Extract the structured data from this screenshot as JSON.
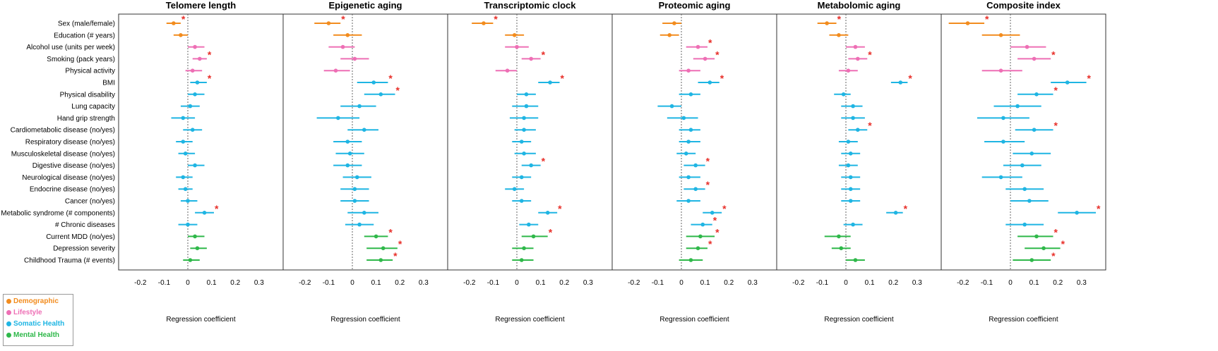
{
  "chart_data": {
    "type": "forest",
    "xlabel": "Regression coefficient",
    "xlim": [
      -0.25,
      0.36
    ],
    "xticks": [
      -0.2,
      -0.1,
      0.0,
      0.1,
      0.2,
      0.3
    ],
    "xtick_labels": [
      "-0.2",
      "-0.1",
      "0",
      "0.1",
      "0.2",
      "0.3"
    ],
    "reference_line": 0,
    "rows": [
      {
        "label": "Sex (male/female)",
        "group": "Demographic"
      },
      {
        "label": "Education (# years)",
        "group": "Demographic"
      },
      {
        "label": "Alcohol use (units per week)",
        "group": "Lifestyle"
      },
      {
        "label": "Smoking (pack years)",
        "group": "Lifestyle"
      },
      {
        "label": "Physical activity",
        "group": "Lifestyle"
      },
      {
        "label": "BMI",
        "group": "Somatic Health"
      },
      {
        "label": "Physical disability",
        "group": "Somatic Health"
      },
      {
        "label": "Lung capacity",
        "group": "Somatic Health"
      },
      {
        "label": "Hand grip strength",
        "group": "Somatic Health"
      },
      {
        "label": "Cardiometabolic disease (no/yes)",
        "group": "Somatic Health"
      },
      {
        "label": "Respiratory disease (no/yes)",
        "group": "Somatic Health"
      },
      {
        "label": "Musculoskeletal disease (no/yes)",
        "group": "Somatic Health"
      },
      {
        "label": "Digestive disease (no/yes)",
        "group": "Somatic Health"
      },
      {
        "label": "Neurological disease (no/yes)",
        "group": "Somatic Health"
      },
      {
        "label": "Endocrine disease (no/yes)",
        "group": "Somatic Health"
      },
      {
        "label": "Cancer (no/yes)",
        "group": "Somatic Health"
      },
      {
        "label": "Metabolic syndrome (# components)",
        "group": "Somatic Health"
      },
      {
        "label": "# Chronic diseases",
        "group": "Somatic Health"
      },
      {
        "label": "Current MDD (no/yes)",
        "group": "Mental Health"
      },
      {
        "label": "Depression severity",
        "group": "Mental Health"
      },
      {
        "label": "Childhood Trauma (# events)",
        "group": "Mental Health"
      }
    ],
    "groups": [
      {
        "name": "Demographic",
        "color": "#F28C1E"
      },
      {
        "name": "Lifestyle",
        "color": "#EE6FB5"
      },
      {
        "name": "Somatic Health",
        "color": "#1FB5E3"
      },
      {
        "name": "Mental Health",
        "color": "#2FB84A"
      }
    ],
    "significance_marker": "*",
    "significance_color": "#E8302A",
    "panels": [
      {
        "title": "Telomere length",
        "estimates": [
          -0.06,
          -0.03,
          0.03,
          0.05,
          0.02,
          0.04,
          0.03,
          0.01,
          -0.02,
          0.02,
          -0.02,
          -0.01,
          0.03,
          -0.02,
          -0.01,
          0.0,
          0.07,
          0.0,
          0.03,
          0.04,
          0.01
        ],
        "lower": [
          -0.09,
          -0.06,
          0.0,
          0.02,
          -0.01,
          0.01,
          0.0,
          -0.03,
          -0.07,
          -0.02,
          -0.05,
          -0.04,
          0.0,
          -0.05,
          -0.04,
          -0.03,
          0.03,
          -0.04,
          0.0,
          0.01,
          -0.02
        ],
        "upper": [
          -0.03,
          0.0,
          0.07,
          0.08,
          0.06,
          0.08,
          0.07,
          0.05,
          0.03,
          0.06,
          0.02,
          0.03,
          0.07,
          0.02,
          0.02,
          0.04,
          0.11,
          0.04,
          0.07,
          0.08,
          0.05
        ],
        "significant": [
          true,
          false,
          false,
          true,
          false,
          true,
          false,
          false,
          false,
          false,
          false,
          false,
          false,
          false,
          false,
          false,
          true,
          false,
          false,
          false,
          false
        ]
      },
      {
        "title": "Epigenetic aging",
        "estimates": [
          -0.1,
          -0.02,
          -0.04,
          0.01,
          -0.07,
          0.09,
          0.12,
          0.03,
          -0.06,
          0.05,
          -0.02,
          -0.01,
          -0.02,
          0.02,
          0.01,
          0.01,
          0.05,
          0.03,
          0.1,
          0.13,
          0.12
        ],
        "lower": [
          -0.16,
          -0.08,
          -0.1,
          -0.05,
          -0.12,
          0.02,
          0.05,
          -0.05,
          -0.15,
          -0.02,
          -0.08,
          -0.07,
          -0.08,
          -0.04,
          -0.05,
          -0.05,
          -0.02,
          -0.03,
          0.05,
          0.06,
          0.06
        ],
        "upper": [
          -0.05,
          0.04,
          0.01,
          0.07,
          -0.01,
          0.15,
          0.18,
          0.1,
          0.03,
          0.11,
          0.04,
          0.05,
          0.04,
          0.08,
          0.07,
          0.07,
          0.11,
          0.09,
          0.15,
          0.19,
          0.17
        ],
        "significant": [
          true,
          false,
          false,
          false,
          false,
          true,
          true,
          false,
          false,
          false,
          false,
          false,
          false,
          false,
          false,
          false,
          false,
          false,
          true,
          true,
          true
        ]
      },
      {
        "title": "Transcriptomic clock",
        "estimates": [
          -0.14,
          -0.01,
          0.0,
          0.06,
          -0.04,
          0.14,
          0.04,
          0.04,
          0.03,
          0.03,
          0.02,
          0.03,
          0.06,
          0.02,
          -0.01,
          0.02,
          0.13,
          0.05,
          0.07,
          0.03,
          0.02
        ],
        "lower": [
          -0.19,
          -0.05,
          -0.05,
          0.02,
          -0.09,
          0.09,
          0.0,
          -0.02,
          -0.03,
          -0.01,
          -0.02,
          -0.01,
          0.02,
          -0.02,
          -0.05,
          -0.02,
          0.09,
          0.01,
          0.02,
          -0.02,
          -0.02
        ],
        "upper": [
          -0.1,
          0.03,
          0.05,
          0.1,
          0.0,
          0.18,
          0.08,
          0.09,
          0.09,
          0.08,
          0.06,
          0.08,
          0.1,
          0.06,
          0.03,
          0.06,
          0.17,
          0.09,
          0.13,
          0.07,
          0.07
        ],
        "significant": [
          true,
          false,
          false,
          true,
          false,
          true,
          false,
          false,
          false,
          false,
          false,
          false,
          true,
          false,
          false,
          false,
          true,
          false,
          true,
          false,
          false
        ]
      },
      {
        "title": "Proteomic aging",
        "estimates": [
          -0.03,
          -0.05,
          0.07,
          0.1,
          0.03,
          0.12,
          0.04,
          -0.04,
          0.01,
          0.04,
          0.03,
          0.02,
          0.06,
          0.03,
          0.06,
          0.03,
          0.13,
          0.09,
          0.08,
          0.07,
          0.04
        ],
        "lower": [
          -0.08,
          -0.09,
          0.02,
          0.05,
          -0.01,
          0.07,
          -0.01,
          -0.1,
          -0.06,
          -0.01,
          -0.01,
          -0.02,
          0.01,
          -0.01,
          0.01,
          -0.02,
          0.09,
          0.04,
          0.02,
          0.02,
          -0.01
        ],
        "upper": [
          0.0,
          -0.01,
          0.11,
          0.14,
          0.08,
          0.16,
          0.08,
          0.0,
          0.07,
          0.08,
          0.08,
          0.06,
          0.1,
          0.08,
          0.1,
          0.08,
          0.17,
          0.13,
          0.14,
          0.11,
          0.09
        ],
        "significant": [
          false,
          false,
          true,
          true,
          false,
          true,
          false,
          false,
          false,
          false,
          false,
          false,
          true,
          false,
          true,
          false,
          true,
          true,
          true,
          true,
          false
        ]
      },
      {
        "title": "Metabolomic aging",
        "estimates": [
          -0.08,
          -0.03,
          0.04,
          0.05,
          0.01,
          0.23,
          -0.01,
          0.03,
          0.03,
          0.05,
          0.01,
          0.02,
          0.01,
          0.02,
          0.02,
          0.02,
          0.21,
          0.03,
          -0.03,
          -0.02,
          0.04
        ],
        "lower": [
          -0.12,
          -0.07,
          0.0,
          0.01,
          -0.03,
          0.19,
          -0.05,
          -0.02,
          -0.02,
          0.01,
          -0.03,
          -0.02,
          -0.03,
          -0.02,
          -0.02,
          -0.02,
          0.17,
          -0.01,
          -0.09,
          -0.06,
          0.0
        ],
        "upper": [
          -0.04,
          0.01,
          0.08,
          0.09,
          0.05,
          0.26,
          0.02,
          0.07,
          0.08,
          0.09,
          0.05,
          0.06,
          0.05,
          0.06,
          0.06,
          0.06,
          0.24,
          0.07,
          0.02,
          0.02,
          0.08
        ],
        "significant": [
          true,
          false,
          false,
          true,
          false,
          true,
          false,
          false,
          false,
          true,
          false,
          false,
          false,
          false,
          false,
          false,
          true,
          false,
          false,
          false,
          false
        ]
      },
      {
        "title": "Composite index",
        "estimates": [
          -0.18,
          -0.04,
          0.07,
          0.1,
          -0.04,
          0.24,
          0.11,
          0.03,
          -0.03,
          0.1,
          -0.03,
          0.09,
          0.05,
          -0.04,
          0.06,
          0.08,
          0.28,
          0.06,
          0.11,
          0.14,
          0.09
        ],
        "lower": [
          -0.26,
          -0.12,
          0.0,
          0.03,
          -0.12,
          0.17,
          0.03,
          -0.07,
          -0.14,
          0.02,
          -0.11,
          0.01,
          -0.03,
          -0.12,
          -0.02,
          0.0,
          0.2,
          -0.02,
          0.03,
          0.06,
          0.01
        ],
        "upper": [
          -0.11,
          0.04,
          0.15,
          0.17,
          0.05,
          0.32,
          0.18,
          0.13,
          0.08,
          0.18,
          0.06,
          0.17,
          0.13,
          0.05,
          0.14,
          0.16,
          0.36,
          0.14,
          0.18,
          0.21,
          0.17
        ],
        "significant": [
          true,
          false,
          false,
          true,
          false,
          true,
          true,
          false,
          false,
          true,
          false,
          false,
          false,
          false,
          false,
          false,
          true,
          false,
          true,
          true,
          true
        ]
      }
    ],
    "legend": {
      "placement": "bottom-left"
    }
  }
}
